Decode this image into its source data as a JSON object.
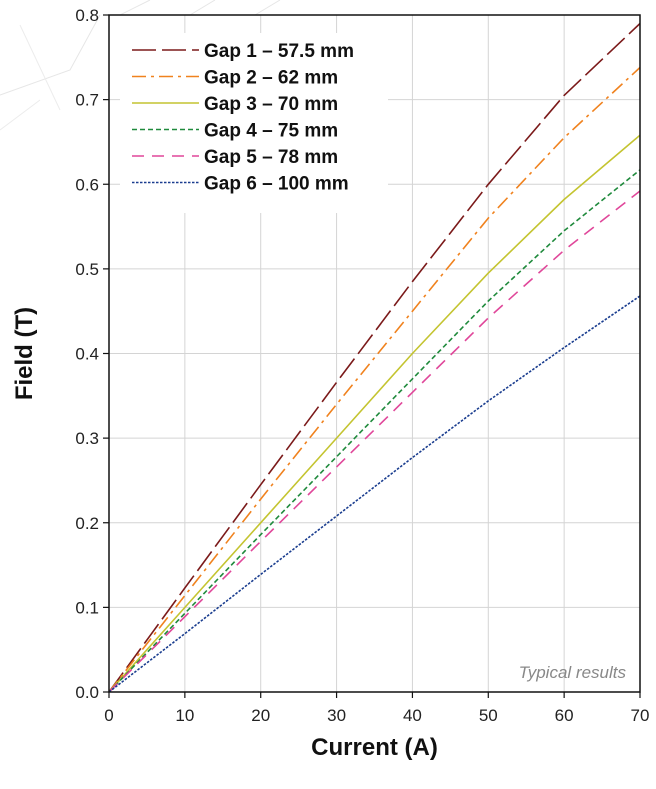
{
  "chart_data": {
    "type": "line",
    "title": "",
    "xlabel": "Current (A)",
    "ylabel": "Field (T)",
    "xlim": [
      0,
      70
    ],
    "ylim": [
      0,
      0.8
    ],
    "xticks": [
      0,
      10,
      20,
      30,
      40,
      50,
      60,
      70
    ],
    "yticks": [
      0.0,
      0.1,
      0.2,
      0.3,
      0.4,
      0.5,
      0.6,
      0.7,
      0.8
    ],
    "xtick_labels": [
      "0",
      "10",
      "20",
      "30",
      "40",
      "50",
      "60",
      "70"
    ],
    "ytick_labels": [
      "0.0",
      "0.1",
      "0.2",
      "0.3",
      "0.4",
      "0.5",
      "0.6",
      "0.7",
      "0.8"
    ],
    "grid": true,
    "legend_position": "top-left",
    "annotation": "Typical results",
    "x": [
      0,
      10,
      20,
      30,
      40,
      50,
      60,
      70
    ],
    "series": [
      {
        "name": "Gap 1 – 57.5 mm",
        "color": "#7b1a1a",
        "dash": "long-dash",
        "values": [
          0,
          0.123,
          0.245,
          0.366,
          0.485,
          0.6,
          0.705,
          0.79
        ]
      },
      {
        "name": "Gap 2 – 62 mm",
        "color": "#f0821e",
        "dash": "dash-dot",
        "values": [
          0,
          0.114,
          0.228,
          0.34,
          0.45,
          0.56,
          0.655,
          0.738
        ]
      },
      {
        "name": "Gap 3 – 70 mm",
        "color": "#c4c430",
        "dash": "solid",
        "values": [
          0,
          0.1,
          0.2,
          0.3,
          0.4,
          0.495,
          0.582,
          0.658
        ]
      },
      {
        "name": "Gap 4 – 75 mm",
        "color": "#1f8a3c",
        "dash": "short-dash",
        "values": [
          0,
          0.093,
          0.186,
          0.278,
          0.37,
          0.462,
          0.545,
          0.617
        ]
      },
      {
        "name": "Gap 5 – 78 mm",
        "color": "#e0479a",
        "dash": "medium-dash",
        "values": [
          0,
          0.089,
          0.178,
          0.266,
          0.354,
          0.442,
          0.522,
          0.592
        ]
      },
      {
        "name": "Gap 6 – 100 mm",
        "color": "#1a3d8f",
        "dash": "dotted",
        "values": [
          0,
          0.069,
          0.139,
          0.208,
          0.277,
          0.344,
          0.407,
          0.468
        ]
      }
    ]
  }
}
